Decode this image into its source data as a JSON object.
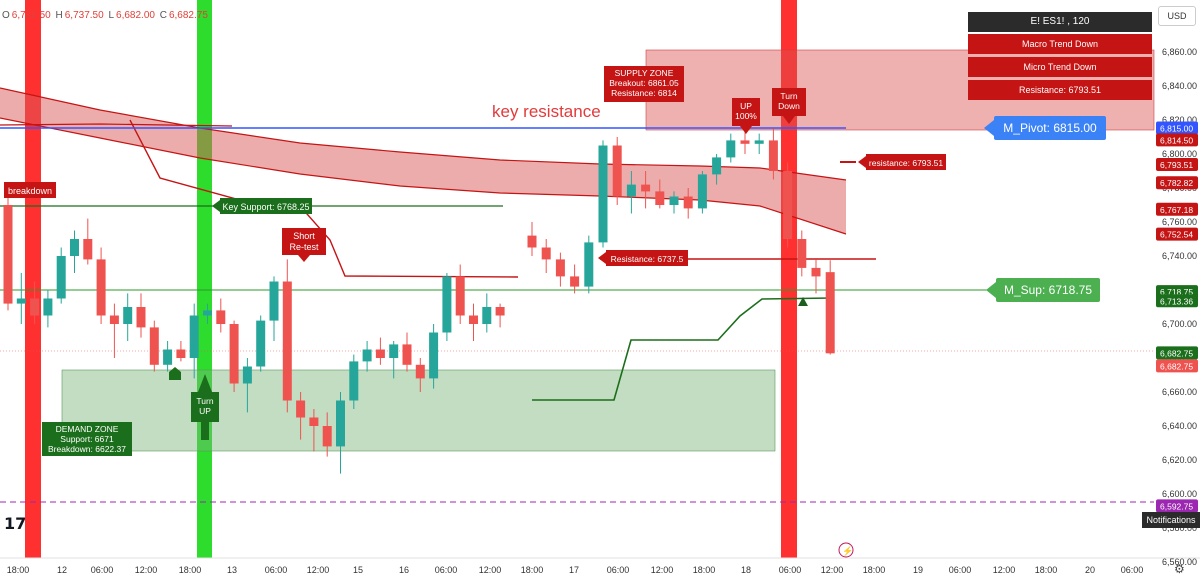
{
  "ohlc": {
    "o_label": "O",
    "o": "6,730.50",
    "h_label": "H",
    "h": "6,737.50",
    "l_label": "L",
    "l": "6,682.00",
    "c_label": "C",
    "c": "6,682.75"
  },
  "currency": "USD",
  "info_panel": {
    "title": "E!        ES1! , 120",
    "rows": [
      "Macro Trend Down",
      "Micro Trend Down",
      "Resistance: 6793.51"
    ]
  },
  "notifications_label": "Notifications",
  "colors": {
    "up": "#26a69a",
    "down": "#ef5350",
    "resistance_red": "#c51414",
    "support_green": "#1b6e1b",
    "pivot_blue": "#3355ff"
  },
  "annotations": {
    "key_resistance": "key resistance",
    "breakdown": "breakdown",
    "key_support": "Key Support: 6768.25",
    "short_retest": [
      "Short",
      "Re-test"
    ],
    "supply_zone": [
      "SUPPLY ZONE",
      "Breakout: 6861.05",
      "Resistance: 6814"
    ],
    "up_100": [
      "UP",
      "100%"
    ],
    "turn_down": [
      "Turn",
      "Down"
    ],
    "resistance_6793": "resistance: 6793.51",
    "resistance_6737": "Resistance: 6737.5",
    "m_pivot": "M_Pivot: 6815.00",
    "m_sup": "M_Sup: 6718.75",
    "turn_up": [
      "Turn",
      "UP"
    ],
    "demand_zone": [
      "DEMAND ZONE",
      "Support: 6671",
      "Breakdown: 6622.37"
    ]
  },
  "chart_data": {
    "type": "candlestick",
    "symbol": "ES1!",
    "timeframe": "120",
    "ylim": [
      6560,
      6880
    ],
    "y_ticks": [
      "6,860.00",
      "6,840.00",
      "6,820.00",
      "6,800.00",
      "6,780.00",
      "6,760.00",
      "6,740.00",
      "6,720.00",
      "6,700.00",
      "6,680.00",
      "6,660.00",
      "6,640.00",
      "6,620.00",
      "6,600.00",
      "6,580.00",
      "6,560.00"
    ],
    "x_ticks": [
      "18:00",
      "12",
      "06:00",
      "12:00",
      "18:00",
      "13",
      "06:00",
      "12:00",
      "15",
      "16",
      "06:00",
      "12:00",
      "18:00",
      "17",
      "06:00",
      "12:00",
      "18:00",
      "18",
      "06:00",
      "12:00",
      "18:00",
      "19",
      "06:00",
      "12:00",
      "18:00",
      "20",
      "06:00"
    ],
    "price_labels": [
      {
        "text": "6,815.00",
        "value": 6815,
        "color": "#3355ff"
      },
      {
        "text": "6,814.50",
        "value": 6814.5,
        "color": "#c51414"
      },
      {
        "text": "6,793.51",
        "value": 6793.51,
        "color": "#c51414"
      },
      {
        "text": "6,782.82",
        "value": 6782.82,
        "color": "#c51414"
      },
      {
        "text": "6,767.18",
        "value": 6767.18,
        "color": "#c51414"
      },
      {
        "text": "6,752.54",
        "value": 6752.54,
        "color": "#c51414"
      },
      {
        "text": "6,718.75",
        "value": 6718.75,
        "color": "#1b6e1b"
      },
      {
        "text": "6,713.36",
        "value": 6713.36,
        "color": "#1b6e1b"
      },
      {
        "text": "6,682.75",
        "value": 6682.75,
        "color": "#1b6e1b"
      },
      {
        "text": "6,682.75",
        "value": 6682.75,
        "color": "#ef5350"
      },
      {
        "text": "6,592.75",
        "value": 6592.75,
        "color": "#9c27b0"
      }
    ],
    "candles": [
      {
        "o": 6770,
        "h": 6778,
        "l": 6708,
        "c": 6712
      },
      {
        "o": 6712,
        "h": 6730,
        "l": 6700,
        "c": 6715
      },
      {
        "o": 6715,
        "h": 6725,
        "l": 6700,
        "c": 6705
      },
      {
        "o": 6705,
        "h": 6720,
        "l": 6698,
        "c": 6715
      },
      {
        "o": 6715,
        "h": 6745,
        "l": 6712,
        "c": 6740
      },
      {
        "o": 6740,
        "h": 6755,
        "l": 6730,
        "c": 6750
      },
      {
        "o": 6750,
        "h": 6762,
        "l": 6735,
        "c": 6738
      },
      {
        "o": 6738,
        "h": 6745,
        "l": 6700,
        "c": 6705
      },
      {
        "o": 6705,
        "h": 6712,
        "l": 6680,
        "c": 6700
      },
      {
        "o": 6700,
        "h": 6718,
        "l": 6690,
        "c": 6710
      },
      {
        "o": 6710,
        "h": 6718,
        "l": 6692,
        "c": 6698
      },
      {
        "o": 6698,
        "h": 6702,
        "l": 6672,
        "c": 6676
      },
      {
        "o": 6676,
        "h": 6690,
        "l": 6672,
        "c": 6685
      },
      {
        "o": 6685,
        "h": 6690,
        "l": 6678,
        "c": 6680
      },
      {
        "o": 6680,
        "h": 6712,
        "l": 6668,
        "c": 6705
      },
      {
        "o": 6705,
        "h": 6712,
        "l": 6700,
        "c": 6708
      },
      {
        "o": 6708,
        "h": 6715,
        "l": 6695,
        "c": 6700
      },
      {
        "o": 6700,
        "h": 6702,
        "l": 6660,
        "c": 6665
      },
      {
        "o": 6665,
        "h": 6680,
        "l": 6648,
        "c": 6675
      },
      {
        "o": 6675,
        "h": 6705,
        "l": 6672,
        "c": 6702
      },
      {
        "o": 6702,
        "h": 6728,
        "l": 6690,
        "c": 6725
      },
      {
        "o": 6725,
        "h": 6738,
        "l": 6648,
        "c": 6655
      },
      {
        "o": 6655,
        "h": 6660,
        "l": 6632,
        "c": 6645
      },
      {
        "o": 6645,
        "h": 6650,
        "l": 6625,
        "c": 6640
      },
      {
        "o": 6640,
        "h": 6648,
        "l": 6622,
        "c": 6628
      },
      {
        "o": 6628,
        "h": 6660,
        "l": 6612,
        "c": 6655
      },
      {
        "o": 6655,
        "h": 6682,
        "l": 6650,
        "c": 6678
      },
      {
        "o": 6678,
        "h": 6690,
        "l": 6672,
        "c": 6685
      },
      {
        "o": 6685,
        "h": 6692,
        "l": 6676,
        "c": 6680
      },
      {
        "o": 6680,
        "h": 6690,
        "l": 6668,
        "c": 6688
      },
      {
        "o": 6688,
        "h": 6695,
        "l": 6672,
        "c": 6676
      },
      {
        "o": 6676,
        "h": 6680,
        "l": 6660,
        "c": 6668
      },
      {
        "o": 6668,
        "h": 6700,
        "l": 6662,
        "c": 6695
      },
      {
        "o": 6695,
        "h": 6730,
        "l": 6690,
        "c": 6728
      },
      {
        "o": 6728,
        "h": 6735,
        "l": 6700,
        "c": 6705
      },
      {
        "o": 6705,
        "h": 6712,
        "l": 6690,
        "c": 6700
      },
      {
        "o": 6700,
        "h": 6718,
        "l": 6695,
        "c": 6710
      },
      {
        "o": 6710,
        "h": 6712,
        "l": 6698,
        "c": 6705
      },
      {
        "o": 6752,
        "h": 6760,
        "l": 6740,
        "c": 6745
      },
      {
        "o": 6745,
        "h": 6750,
        "l": 6730,
        "c": 6738
      },
      {
        "o": 6738,
        "h": 6742,
        "l": 6722,
        "c": 6728
      },
      {
        "o": 6728,
        "h": 6735,
        "l": 6718,
        "c": 6722
      },
      {
        "o": 6722,
        "h": 6752,
        "l": 6718,
        "c": 6748
      },
      {
        "o": 6748,
        "h": 6808,
        "l": 6745,
        "c": 6805
      },
      {
        "o": 6805,
        "h": 6810,
        "l": 6770,
        "c": 6775
      },
      {
        "o": 6775,
        "h": 6790,
        "l": 6765,
        "c": 6782
      },
      {
        "o": 6782,
        "h": 6790,
        "l": 6768,
        "c": 6778
      },
      {
        "o": 6778,
        "h": 6785,
        "l": 6768,
        "c": 6770
      },
      {
        "o": 6770,
        "h": 6778,
        "l": 6765,
        "c": 6775
      },
      {
        "o": 6775,
        "h": 6780,
        "l": 6762,
        "c": 6768
      },
      {
        "o": 6768,
        "h": 6790,
        "l": 6765,
        "c": 6788
      },
      {
        "o": 6788,
        "h": 6800,
        "l": 6782,
        "c": 6798
      },
      {
        "o": 6798,
        "h": 6812,
        "l": 6795,
        "c": 6808
      },
      {
        "o": 6808,
        "h": 6815,
        "l": 6800,
        "c": 6806
      },
      {
        "o": 6806,
        "h": 6812,
        "l": 6800,
        "c": 6808
      },
      {
        "o": 6808,
        "h": 6815,
        "l": 6785,
        "c": 6790
      },
      {
        "o": 6790,
        "h": 6795,
        "l": 6745,
        "c": 6750
      },
      {
        "o": 6750,
        "h": 6755,
        "l": 6728,
        "c": 6733
      },
      {
        "o": 6733,
        "h": 6738,
        "l": 6718,
        "c": 6728
      },
      {
        "o": 6730.5,
        "h": 6737.5,
        "l": 6682,
        "c": 6682.75
      }
    ]
  }
}
